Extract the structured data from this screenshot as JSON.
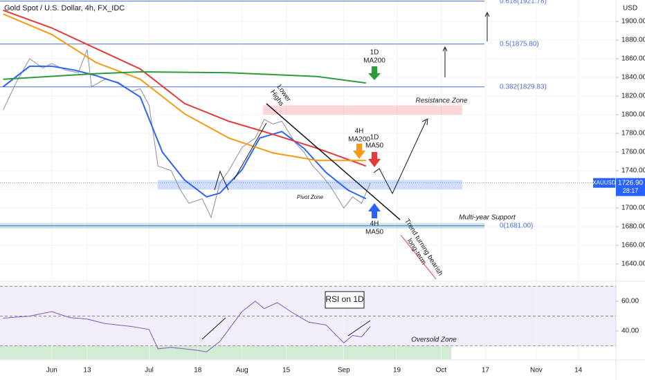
{
  "chart_data": [
    {
      "type": "line",
      "title": "Gold Spot / U.S. Dollar, 4h, FX_IDC",
      "y_axis_label": "USD",
      "symbol": "XAUUSD",
      "last_price": {
        "value": 1726.9,
        "label": "1726.90"
      },
      "countdown": "28:17",
      "xlim": [
        -11.7,
        127.5
      ],
      "ylim": [
        1623,
        1923
      ],
      "xticks": [
        {
          "value": 0,
          "label": "Jun"
        },
        {
          "value": 8,
          "label": "13"
        },
        {
          "value": 22,
          "label": "Jul"
        },
        {
          "value": 33,
          "label": "18"
        },
        {
          "value": 43,
          "label": "Aug"
        },
        {
          "value": 53,
          "label": "15"
        },
        {
          "value": 66,
          "label": "Sep"
        },
        {
          "value": 78,
          "label": "19"
        },
        {
          "value": 88,
          "label": "Oct"
        },
        {
          "value": 98,
          "label": "17"
        },
        {
          "value": 109.5,
          "label": "Nov"
        },
        {
          "value": 119,
          "label": "14"
        }
      ],
      "yticks": [
        {
          "value": 1640,
          "label": "1640.00"
        },
        {
          "value": 1660,
          "label": "1660.00"
        },
        {
          "value": 1680,
          "label": "1680.00"
        },
        {
          "value": 1700,
          "label": "1700.00"
        },
        {
          "value": 1720,
          "label": "1720.00"
        },
        {
          "value": 1740,
          "label": "1740.00"
        },
        {
          "value": 1760,
          "label": "1760.00"
        },
        {
          "value": 1780,
          "label": "1780.00"
        },
        {
          "value": 1800,
          "label": "1800.00"
        },
        {
          "value": 1820,
          "label": "1820.00"
        },
        {
          "value": 1840,
          "label": "1840.00"
        },
        {
          "value": 1860,
          "label": "1860.00"
        },
        {
          "value": 1880,
          "label": "1880.00"
        },
        {
          "value": 1900,
          "label": "1900.00"
        }
      ],
      "grid": true,
      "series": [
        {
          "color": "#8a8d96",
          "x": [
            -11,
            -8,
            -5,
            -2,
            0,
            3,
            6,
            8,
            9,
            12,
            15,
            18,
            20,
            22,
            24,
            27,
            29,
            31,
            34,
            36,
            38,
            40,
            43,
            46,
            48,
            50,
            52,
            55,
            57,
            59,
            61,
            63,
            66,
            68,
            70,
            72
          ],
          "values": [
            1805,
            1835,
            1860,
            1850,
            1855,
            1848,
            1845,
            1870,
            1830,
            1838,
            1835,
            1825,
            1828,
            1810,
            1745,
            1740,
            1720,
            1705,
            1710,
            1690,
            1727,
            1740,
            1765,
            1775,
            1795,
            1790,
            1793,
            1770,
            1760,
            1745,
            1735,
            1723,
            1700,
            1712,
            1705,
            1726.9
          ]
        },
        {
          "color": "#2962ff",
          "x": [
            -11,
            -5,
            0,
            5,
            10,
            15,
            20,
            25,
            30,
            35,
            38,
            43,
            47,
            52,
            57,
            62,
            67,
            71
          ],
          "values": [
            1830,
            1852,
            1852,
            1848,
            1842,
            1834,
            1819,
            1760,
            1730,
            1712,
            1716,
            1741,
            1775,
            1782,
            1764,
            1738,
            1719,
            1710
          ]
        },
        {
          "color": "#e53935",
          "x": [
            -11,
            0,
            10,
            20,
            30,
            40,
            50,
            60,
            71
          ],
          "values": [
            1912,
            1893,
            1871,
            1849,
            1812,
            1793,
            1779,
            1764,
            1745
          ]
        },
        {
          "color": "#f59a12",
          "x": [
            -11,
            0,
            10,
            20,
            30,
            40,
            50,
            60,
            71
          ],
          "values": [
            1908,
            1886,
            1856,
            1838,
            1801,
            1775,
            1759,
            1751,
            1751
          ]
        },
        {
          "color": "#2e9b3a",
          "x": [
            -11,
            10,
            20,
            40,
            60,
            71
          ],
          "values": [
            1838,
            1844,
            1846,
            1845,
            1841,
            1834
          ]
        }
      ],
      "fib_levels": [
        {
          "label": "0.618(1921.78)",
          "value": 1921.78
        },
        {
          "label": "0.5(1875.80)",
          "value": 1875.8
        },
        {
          "label": "0.382(1829.83)",
          "value": 1829.83
        },
        {
          "label": "0(1681.00)",
          "value": 1681
        }
      ],
      "zones": [
        {
          "label": "Resistance Zone",
          "range": [
            1800,
            1810
          ],
          "color": "rgba(242,54,69,0.2)"
        },
        {
          "label": "Pivot Zone",
          "range": [
            1720,
            1730
          ],
          "color": "rgba(41,98,255,0.22)"
        },
        {
          "label": "Multi-year Support",
          "range": [
            1678,
            1684
          ],
          "color": "rgba(0,137,123,0.2)"
        }
      ],
      "annotations": [
        [
          "1D",
          "MA200"
        ],
        [
          "4H",
          "MA200"
        ],
        [
          "1D",
          "MA50"
        ],
        [
          "4H",
          "MA50"
        ],
        [
          "Lower",
          "Highs"
        ],
        [
          "Trend turning bearish",
          "long-term"
        ]
      ]
    },
    {
      "type": "line",
      "title": "RSI on 1D",
      "xlim": [
        -11.7,
        127.5
      ],
      "ylim": [
        21,
        72
      ],
      "yticks": [
        {
          "value": 40,
          "label": "40.00"
        },
        {
          "value": 60,
          "label": "60.00"
        }
      ],
      "levels": [
        30,
        50,
        70
      ],
      "oversold_zone": {
        "label": "Oversold Zone",
        "range": [
          21,
          30
        ]
      },
      "series": [
        {
          "color": "#7e57c2",
          "x": [
            -11,
            -5,
            0,
            4,
            8,
            12,
            15,
            18,
            22,
            24,
            27,
            30,
            33,
            35,
            38,
            41,
            43,
            46,
            48,
            51,
            54,
            58,
            62,
            66,
            68,
            70,
            72
          ],
          "values": [
            48.6,
            50,
            53,
            49,
            48,
            45,
            44,
            43,
            41,
            28,
            29,
            28,
            27,
            26,
            33,
            45,
            53,
            60,
            55,
            59,
            53,
            46,
            44,
            32,
            37,
            36,
            43
          ]
        }
      ]
    }
  ]
}
